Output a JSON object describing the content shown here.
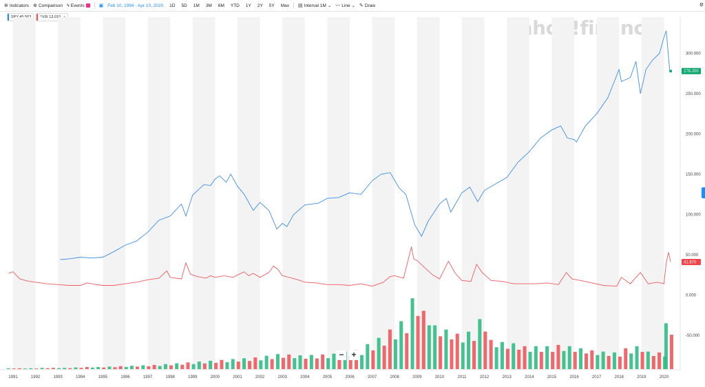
{
  "toolbar": {
    "indicators": "Indicators",
    "comparison": "Comparison",
    "events": "Events",
    "date_range": "Feb 10, 1994 - Apr 10, 2020",
    "ranges": [
      "1D",
      "5D",
      "1M",
      "3M",
      "6M",
      "YTD",
      "1Y",
      "2Y",
      "5Y",
      "Max"
    ],
    "interval": "Interval",
    "interval_value": "1M",
    "line": "Line",
    "draw": "Draw"
  },
  "legend": [
    {
      "label": "SPY 45.563",
      "color": "#188fff"
    },
    {
      "label": "^VIX 13.010",
      "color": "#ff4d52"
    }
  ],
  "watermark": "yahoo!finance",
  "zoom": {
    "minus": "−",
    "plus": "+"
  },
  "colors": {
    "spy": "#3b8eea",
    "vix": "#f05a5e",
    "vol_up": "#2dbd85",
    "vol_down": "#f0575c",
    "band": "#f3f3f3"
  },
  "chart_data": {
    "type": "line",
    "x_ticks": [
      "1991",
      "1992",
      "1993",
      "1994",
      "1995",
      "1996",
      "1997",
      "1998",
      "1999",
      "2000",
      "2001",
      "2002",
      "2003",
      "2004",
      "2005",
      "2006",
      "2007",
      "2008",
      "2009",
      "2010",
      "2011",
      "2012",
      "2013",
      "2014",
      "2015",
      "2016",
      "2017",
      "2018",
      "2019",
      "2020"
    ],
    "y_ticks_upper": [
      "300.000",
      "250.000",
      "200.000",
      "150.000",
      "100.000",
      "50.000"
    ],
    "y_ticks_lower": [
      "0.000",
      "-50.000"
    ],
    "last_price_labels": {
      "spy": "278.200",
      "vix": "41.670"
    },
    "series": [
      {
        "name": "SPY",
        "x": [
          1993.1,
          1993.5,
          1994.0,
          1994.5,
          1995.0,
          1995.5,
          1996.0,
          1996.5,
          1997.0,
          1997.5,
          1998.0,
          1998.5,
          1998.7,
          1999.0,
          1999.5,
          1999.8,
          2000.0,
          2000.2,
          2000.5,
          2000.7,
          2001.0,
          2001.3,
          2001.7,
          2002.0,
          2002.4,
          2002.75,
          2003.0,
          2003.2,
          2003.5,
          2004.0,
          2004.6,
          2005.0,
          2005.5,
          2006.0,
          2006.5,
          2007.0,
          2007.4,
          2007.8,
          2008.2,
          2008.5,
          2008.9,
          2009.2,
          2009.5,
          2010.0,
          2010.3,
          2010.5,
          2011.0,
          2011.35,
          2011.7,
          2012.0,
          2012.5,
          2013.0,
          2013.5,
          2014.0,
          2014.5,
          2015.0,
          2015.4,
          2015.7,
          2016.0,
          2016.1,
          2016.5,
          2017.0,
          2017.5,
          2018.0,
          2018.1,
          2018.5,
          2018.75,
          2018.95,
          2019.2,
          2019.5,
          2019.8,
          2020.0,
          2020.1,
          2020.25,
          2020.3
        ],
        "values": [
          44,
          45,
          47,
          46,
          47,
          54,
          62,
          67,
          78,
          93,
          98,
          113,
          98,
          124,
          137,
          136,
          144,
          148,
          140,
          150,
          135,
          125,
          105,
          115,
          105,
          82,
          89,
          85,
          100,
          112,
          114,
          120,
          121,
          127,
          125,
          142,
          150,
          152,
          133,
          125,
          87,
          73,
          92,
          113,
          120,
          103,
          127,
          134,
          116,
          130,
          138,
          146,
          165,
          178,
          195,
          205,
          210,
          195,
          193,
          190,
          210,
          225,
          245,
          280,
          265,
          270,
          290,
          250,
          280,
          292,
          300,
          320,
          328,
          280,
          278
        ]
      },
      {
        "name": "^VIX",
        "x": [
          1990.8,
          1991.0,
          1991.3,
          1991.7,
          1992.0,
          1992.5,
          1993.0,
          1993.5,
          1994.0,
          1994.3,
          1994.7,
          1995.0,
          1995.5,
          1996.0,
          1996.5,
          1997.0,
          1997.5,
          1997.85,
          1998.0,
          1998.5,
          1998.7,
          1998.9,
          1999.2,
          1999.6,
          1999.8,
          2000.0,
          2000.4,
          2000.8,
          2001.0,
          2001.3,
          2001.5,
          2001.7,
          2002.0,
          2002.4,
          2002.6,
          2002.8,
          2003.0,
          2003.3,
          2003.7,
          2004.0,
          2004.5,
          2005.0,
          2005.5,
          2006.0,
          2006.5,
          2007.0,
          2007.5,
          2007.8,
          2008.0,
          2008.4,
          2008.75,
          2008.85,
          2009.0,
          2009.3,
          2009.7,
          2010.0,
          2010.4,
          2010.7,
          2011.0,
          2011.4,
          2011.65,
          2011.9,
          2012.3,
          2012.8,
          2013.3,
          2013.8,
          2014.3,
          2014.8,
          2015.3,
          2015.65,
          2015.9,
          2016.3,
          2016.8,
          2017.3,
          2017.9,
          2018.1,
          2018.5,
          2018.95,
          2019.3,
          2019.7,
          2020.0,
          2020.1,
          2020.2,
          2020.3
        ],
        "values": [
          27,
          29,
          20,
          17,
          16,
          14,
          13,
          12,
          12,
          15,
          13,
          12,
          12,
          14,
          16,
          19,
          21,
          30,
          22,
          20,
          40,
          26,
          23,
          21,
          24,
          22,
          24,
          22,
          25,
          29,
          24,
          27,
          22,
          28,
          36,
          32,
          24,
          22,
          19,
          16,
          15,
          13,
          13,
          12,
          14,
          11,
          16,
          23,
          24,
          21,
          60,
          45,
          43,
          35,
          25,
          20,
          42,
          27,
          18,
          17,
          38,
          28,
          18,
          17,
          14,
          14,
          14,
          15,
          13,
          28,
          20,
          18,
          15,
          12,
          11,
          22,
          14,
          28,
          14,
          16,
          14,
          40,
          53,
          41
        ]
      }
    ],
    "volume": {
      "x": [
        1990.9,
        1991.4,
        1991.9,
        1992.4,
        1992.9,
        1993.4,
        1993.9,
        1994.4,
        1994.9,
        1995.4,
        1995.9,
        1996.4,
        1996.9,
        1997.4,
        1997.9,
        1998.4,
        1998.9,
        1999.4,
        1999.9,
        2000.4,
        2000.9,
        2001.4,
        2001.9,
        2002.4,
        2002.9,
        2003.4,
        2003.9,
        2004.4,
        2004.9,
        2005.4,
        2005.9,
        2006.4,
        2006.9,
        2007.4,
        2007.9,
        2008.4,
        2008.9,
        2009.4,
        2009.9,
        2010.4,
        2010.9,
        2011.4,
        2011.9,
        2012.4,
        2012.9,
        2013.4,
        2013.9,
        2014.4,
        2014.9,
        2015.4,
        2015.9,
        2016.4,
        2016.9,
        2017.4,
        2017.9,
        2018.4,
        2018.9,
        2019.4,
        2019.9,
        2020.2
      ],
      "values": [
        0.02,
        0.02,
        0.02,
        0.03,
        0.03,
        0.03,
        0.04,
        0.05,
        0.05,
        0.06,
        0.07,
        0.08,
        0.09,
        0.1,
        0.12,
        0.14,
        0.16,
        0.18,
        0.2,
        0.22,
        0.24,
        0.26,
        0.28,
        0.32,
        0.36,
        0.35,
        0.33,
        0.34,
        0.35,
        0.37,
        0.42,
        0.45,
        0.6,
        0.75,
        0.95,
        1.15,
        1.7,
        1.4,
        1.05,
        0.95,
        0.85,
        0.9,
        1.2,
        0.7,
        0.65,
        0.62,
        0.55,
        0.55,
        0.55,
        0.58,
        0.55,
        0.5,
        0.45,
        0.42,
        0.4,
        0.5,
        0.55,
        0.42,
        0.4,
        1.1
      ]
    }
  }
}
